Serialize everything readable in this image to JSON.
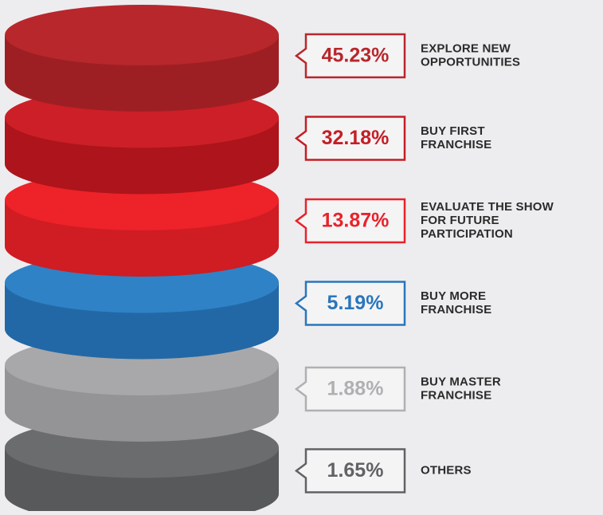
{
  "items": [
    {
      "percent": "45.23%",
      "label": [
        "EXPLORE NEW",
        "OPPORTUNITIES"
      ]
    },
    {
      "percent": "32.18%",
      "label": [
        "BUY FIRST",
        "FRANCHISE"
      ]
    },
    {
      "percent": "13.87%",
      "label": [
        "EVALUATE THE SHOW",
        "FOR FUTURE",
        "PARTICIPATION"
      ]
    },
    {
      "percent": "5.19%",
      "label": [
        "BUY MORE",
        "FRANCHISE"
      ]
    },
    {
      "percent": "1.88%",
      "label": [
        "BUY MASTER",
        "FRANCHISE"
      ]
    },
    {
      "percent": "1.65%",
      "label": [
        "OTHERS"
      ]
    }
  ]
}
